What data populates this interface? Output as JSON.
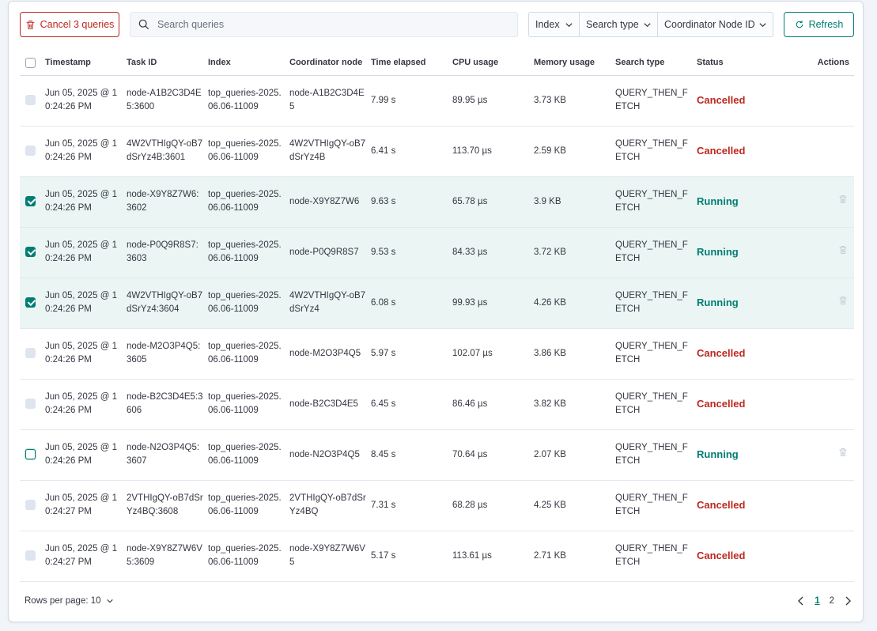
{
  "toolbar": {
    "cancel_label": "Cancel 3 queries",
    "search_placeholder": "Search queries",
    "filters": [
      "Index",
      "Search type",
      "Coordinator Node ID"
    ],
    "refresh_label": "Refresh"
  },
  "table": {
    "headers": [
      "Timestamp",
      "Task ID",
      "Index",
      "Coordinator node",
      "Time elapsed",
      "CPU usage",
      "Memory usage",
      "Search type",
      "Status",
      "Actions"
    ],
    "rows": [
      {
        "checked": "off",
        "timestamp": "Jun 05, 2025 @ 10:24:26 PM",
        "task_id": "node-A1B2C3D4E5:3600",
        "index": "top_queries-2025.06.06-11009",
        "coordinator": "node-A1B2C3D4E5",
        "elapsed": "7.99 s",
        "cpu": "89.95 µs",
        "memory": "3.73 KB",
        "search_type": "QUERY_THEN_FETCH",
        "status": "Cancelled",
        "action": false
      },
      {
        "checked": "off",
        "timestamp": "Jun 05, 2025 @ 10:24:26 PM",
        "task_id": "4W2VTHIgQY-oB7dSrYz4B:3601",
        "index": "top_queries-2025.06.06-11009",
        "coordinator": "4W2VTHIgQY-oB7dSrYz4B",
        "elapsed": "6.41 s",
        "cpu": "113.70 µs",
        "memory": "2.59 KB",
        "search_type": "QUERY_THEN_FETCH",
        "status": "Cancelled",
        "action": false
      },
      {
        "checked": "on",
        "timestamp": "Jun 05, 2025 @ 10:24:26 PM",
        "task_id": "node-X9Y8Z7W6:3602",
        "index": "top_queries-2025.06.06-11009",
        "coordinator": "node-X9Y8Z7W6",
        "elapsed": "9.63 s",
        "cpu": "65.78 µs",
        "memory": "3.9 KB",
        "search_type": "QUERY_THEN_FETCH",
        "status": "Running",
        "action": true
      },
      {
        "checked": "on",
        "timestamp": "Jun 05, 2025 @ 10:24:26 PM",
        "task_id": "node-P0Q9R8S7:3603",
        "index": "top_queries-2025.06.06-11009",
        "coordinator": "node-P0Q9R8S7",
        "elapsed": "9.53 s",
        "cpu": "84.33 µs",
        "memory": "3.72 KB",
        "search_type": "QUERY_THEN_FETCH",
        "status": "Running",
        "action": true
      },
      {
        "checked": "on",
        "timestamp": "Jun 05, 2025 @ 10:24:26 PM",
        "task_id": "4W2VTHIgQY-oB7dSrYz4:3604",
        "index": "top_queries-2025.06.06-11009",
        "coordinator": "4W2VTHIgQY-oB7dSrYz4",
        "elapsed": "6.08 s",
        "cpu": "99.93 µs",
        "memory": "4.26 KB",
        "search_type": "QUERY_THEN_FETCH",
        "status": "Running",
        "action": true
      },
      {
        "checked": "off",
        "timestamp": "Jun 05, 2025 @ 10:24:26 PM",
        "task_id": "node-M2O3P4Q5:3605",
        "index": "top_queries-2025.06.06-11009",
        "coordinator": "node-M2O3P4Q5",
        "elapsed": "5.97 s",
        "cpu": "102.07 µs",
        "memory": "3.86 KB",
        "search_type": "QUERY_THEN_FETCH",
        "status": "Cancelled",
        "action": false
      },
      {
        "checked": "off",
        "timestamp": "Jun 05, 2025 @ 10:24:26 PM",
        "task_id": "node-B2C3D4E5:3606",
        "index": "top_queries-2025.06.06-11009",
        "coordinator": "node-B2C3D4E5",
        "elapsed": "6.45 s",
        "cpu": "86.46 µs",
        "memory": "3.82 KB",
        "search_type": "QUERY_THEN_FETCH",
        "status": "Cancelled",
        "action": false
      },
      {
        "checked": "focus",
        "timestamp": "Jun 05, 2025 @ 10:24:26 PM",
        "task_id": "node-N2O3P4Q5:3607",
        "index": "top_queries-2025.06.06-11009",
        "coordinator": "node-N2O3P4Q5",
        "elapsed": "8.45 s",
        "cpu": "70.64 µs",
        "memory": "2.07 KB",
        "search_type": "QUERY_THEN_FETCH",
        "status": "Running",
        "action": true
      },
      {
        "checked": "off",
        "timestamp": "Jun 05, 2025 @ 10:24:27 PM",
        "task_id": "2VTHIgQY-oB7dSrYz4BQ:3608",
        "index": "top_queries-2025.06.06-11009",
        "coordinator": "2VTHIgQY-oB7dSrYz4BQ",
        "elapsed": "7.31 s",
        "cpu": "68.28 µs",
        "memory": "4.25 KB",
        "search_type": "QUERY_THEN_FETCH",
        "status": "Cancelled",
        "action": false
      },
      {
        "checked": "off",
        "timestamp": "Jun 05, 2025 @ 10:24:27 PM",
        "task_id": "node-X9Y8Z7W6V5:3609",
        "index": "top_queries-2025.06.06-11009",
        "coordinator": "node-X9Y8Z7W6V5",
        "elapsed": "5.17 s",
        "cpu": "113.61 µs",
        "memory": "2.71 KB",
        "search_type": "QUERY_THEN_FETCH",
        "status": "Cancelled",
        "action": false
      }
    ]
  },
  "footer": {
    "rows_per_page": "Rows per page: 10",
    "pages": [
      "1",
      "2"
    ],
    "current_page": "1"
  },
  "colors": {
    "danger": "#bd271e",
    "success": "#017d73",
    "selected_row_bg": "#ebf6f4"
  }
}
